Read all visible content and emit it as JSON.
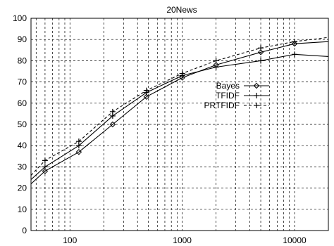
{
  "chart_data": {
    "type": "line",
    "title": "20News",
    "xlabel": "",
    "ylabel": "",
    "x_scale": "log",
    "xlim": [
      45,
      20000
    ],
    "ylim": [
      0,
      100
    ],
    "grid": true,
    "legend_position": "right-center",
    "x_ticks": [
      100,
      1000,
      10000
    ],
    "x_tick_labels": [
      "100",
      "1000",
      "10000"
    ],
    "y_ticks": [
      0,
      10,
      20,
      30,
      40,
      50,
      60,
      70,
      80,
      90,
      100
    ],
    "y_tick_labels": [
      "0",
      "10",
      "20",
      "30",
      "40",
      "50",
      "60",
      "70",
      "80",
      "90",
      "100"
    ],
    "series": [
      {
        "name": "Bayes",
        "marker": "diamond",
        "dash": "none",
        "x": [
          45,
          60,
          120,
          240,
          480,
          1000,
          2000,
          5000,
          10000,
          20000
        ],
        "y": [
          22,
          28,
          37,
          50,
          63,
          72,
          78,
          84,
          88,
          89
        ]
      },
      {
        "name": "TFIDF",
        "marker": "plus",
        "dash": "none",
        "x": [
          45,
          60,
          120,
          240,
          480,
          1000,
          2000,
          5000,
          10000,
          20000
        ],
        "y": [
          24,
          30,
          40,
          54,
          65,
          73,
          77,
          80,
          83,
          82
        ]
      },
      {
        "name": "PRTFIDF",
        "marker": "plus",
        "dash": "dashed",
        "x": [
          45,
          60,
          120,
          240,
          480,
          1000,
          2000,
          5000,
          10000,
          20000
        ],
        "y": [
          26,
          33,
          42,
          56,
          66,
          74,
          80,
          86,
          89,
          91
        ]
      }
    ]
  }
}
